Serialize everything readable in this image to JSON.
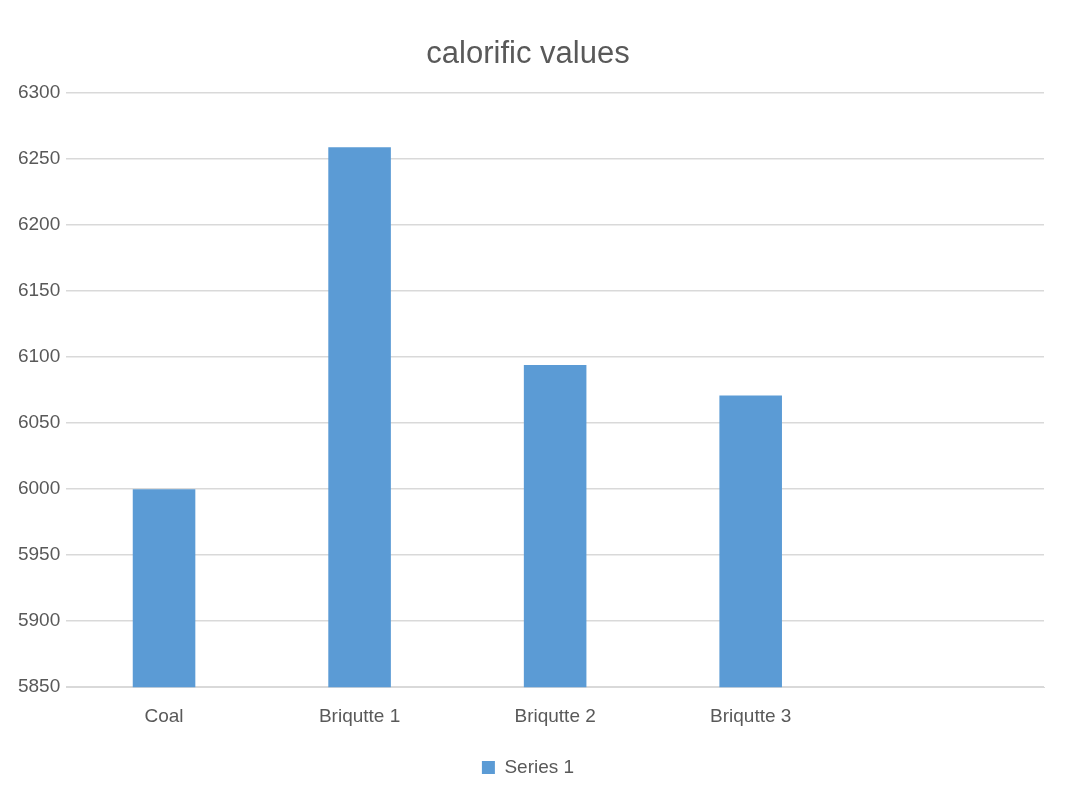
{
  "chart_data": {
    "type": "bar",
    "title": "calorific values",
    "categories": [
      "Coal",
      "Briqutte 1",
      "Briqutte 2",
      "Briqutte 3",
      null
    ],
    "series": [
      {
        "name": "Series 1",
        "color": "#5b9bd5",
        "values": [
          6000,
          6259,
          6094,
          6071,
          null
        ]
      }
    ],
    "ylim": [
      5850,
      6300
    ],
    "yticks": [
      5850,
      5900,
      5950,
      6000,
      6050,
      6100,
      6150,
      6200,
      6250,
      6300
    ],
    "grid": "y",
    "legend": "bottom"
  }
}
